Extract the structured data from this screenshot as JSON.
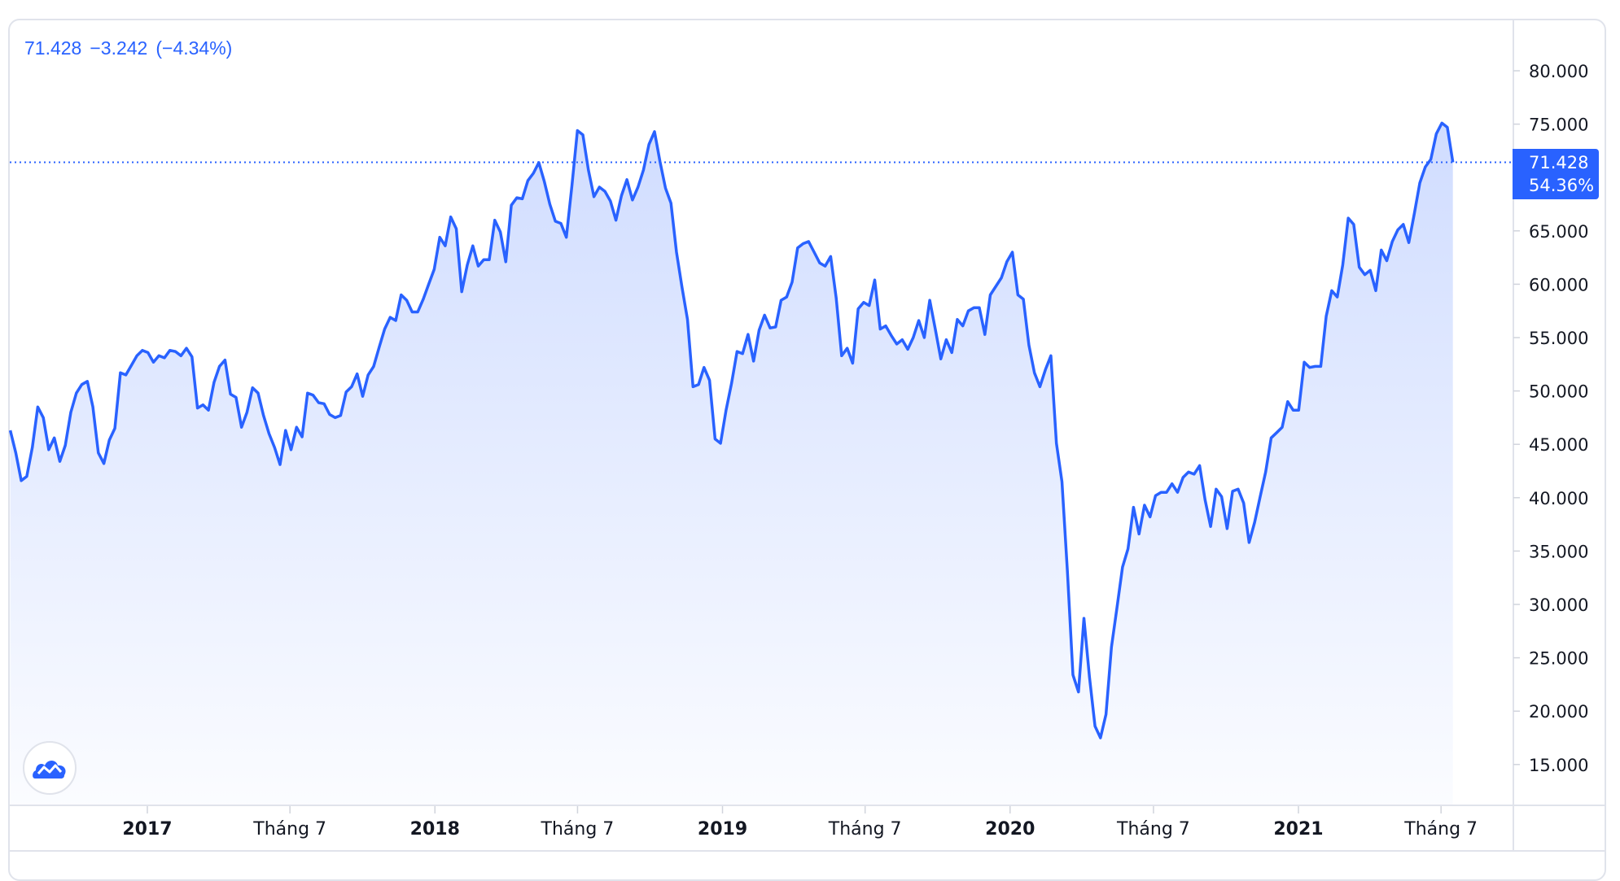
{
  "header": {
    "last": "71.428",
    "change": "−3.242",
    "change_pct": "(−4.34%)"
  },
  "price_badge": {
    "value": "71.428",
    "pct": "54.36%"
  },
  "colors": {
    "line": "#2962ff",
    "fill_top": "rgba(41,98,255,0.22)",
    "fill_bottom": "rgba(41,98,255,0.02)",
    "axis_text": "#131722",
    "grid": "#e0e3eb"
  },
  "logo": {
    "icon": "tradingview-cloud-icon"
  },
  "chart_data": {
    "type": "area",
    "start_date": "2016-07-11",
    "end_date": "2021-07-16",
    "frequency": "weekly",
    "ylim": [
      10000,
      84000
    ],
    "grid": false,
    "last_value": 71428,
    "y_ticks": [
      {
        "value": 80000,
        "label": "80.000"
      },
      {
        "value": 75000,
        "label": "75.000"
      },
      {
        "value": 65000,
        "label": "65.000"
      },
      {
        "value": 60000,
        "label": "60.000"
      },
      {
        "value": 55000,
        "label": "55.000"
      },
      {
        "value": 50000,
        "label": "50.000"
      },
      {
        "value": 45000,
        "label": "45.000"
      },
      {
        "value": 40000,
        "label": "40.000"
      },
      {
        "value": 35000,
        "label": "35.000"
      },
      {
        "value": 30000,
        "label": "30.000"
      },
      {
        "value": 25000,
        "label": "25.000"
      },
      {
        "value": 20000,
        "label": "20.000"
      },
      {
        "value": 15000,
        "label": "15.000"
      }
    ],
    "x_ticks": [
      {
        "date": "2017-01-01",
        "label": "2017",
        "year": true
      },
      {
        "date": "2017-07-01",
        "label": "Tháng 7",
        "year": false
      },
      {
        "date": "2018-01-01",
        "label": "2018",
        "year": true
      },
      {
        "date": "2018-07-01",
        "label": "Tháng 7",
        "year": false
      },
      {
        "date": "2019-01-01",
        "label": "2019",
        "year": true
      },
      {
        "date": "2019-07-01",
        "label": "Tháng 7",
        "year": false
      },
      {
        "date": "2020-01-01",
        "label": "2020",
        "year": true
      },
      {
        "date": "2020-07-01",
        "label": "Tháng 7",
        "year": false
      },
      {
        "date": "2021-01-01",
        "label": "2021",
        "year": true
      },
      {
        "date": "2021-07-01",
        "label": "Tháng 7",
        "year": false
      }
    ],
    "values": [
      46300,
      44200,
      41600,
      42000,
      44700,
      48500,
      47500,
      44500,
      45600,
      43400,
      44900,
      48000,
      49800,
      50600,
      50900,
      48500,
      44200,
      43200,
      45400,
      46500,
      51700,
      51500,
      52400,
      53300,
      53800,
      53600,
      52700,
      53300,
      53100,
      53800,
      53700,
      53300,
      54000,
      53200,
      48400,
      48700,
      48200,
      50800,
      52300,
      52900,
      49700,
      49400,
      46600,
      48000,
      50300,
      49800,
      47700,
      46000,
      44700,
      43100,
      46300,
      44500,
      46600,
      45700,
      49800,
      49600,
      48900,
      48800,
      47800,
      47500,
      47700,
      49900,
      50400,
      51600,
      49500,
      51500,
      52300,
      54100,
      55800,
      56900,
      56600,
      59000,
      58500,
      57400,
      57400,
      58600,
      60000,
      61400,
      64400,
      63600,
      66300,
      65200,
      59300,
      61800,
      63600,
      61700,
      62300,
      62300,
      66000,
      64900,
      62100,
      67400,
      68100,
      68000,
      69700,
      70400,
      71400,
      69600,
      67500,
      65900,
      65700,
      64400,
      69200,
      74400,
      74000,
      70700,
      68200,
      69100,
      68700,
      67800,
      66000,
      68300,
      69800,
      67900,
      69100,
      70700,
      73100,
      74300,
      71500,
      69000,
      67600,
      63000,
      59700,
      56700,
      50400,
      50600,
      52200,
      51000,
      45500,
      45100,
      48200,
      50700,
      53700,
      53500,
      55300,
      52800,
      55700,
      57100,
      55900,
      56000,
      58500,
      58800,
      60200,
      63400,
      63800,
      64000,
      63000,
      62000,
      61700,
      62600,
      58700,
      53300,
      54000,
      52600,
      57700,
      58300,
      58000,
      60400,
      55800,
      56100,
      55200,
      54400,
      54800,
      53900,
      55000,
      56600,
      55000,
      58500,
      55800,
      53000,
      54800,
      53600,
      56700,
      56100,
      57500,
      57800,
      57800,
      55300,
      59000,
      59800,
      60600,
      62100,
      63000,
      59000,
      58600,
      54300,
      51700,
      50400,
      52000,
      53300,
      45100,
      41500,
      33100,
      23400,
      21800,
      28700,
      23200,
      18600,
      17500,
      19700,
      26000,
      29700,
      33500,
      35200,
      39100,
      36600,
      39300,
      38200,
      40200,
      40500,
      40500,
      41300,
      40500,
      41900,
      42400,
      42200,
      43000,
      39800,
      37300,
      40800,
      40100,
      37100,
      40600,
      40800,
      39500,
      35800,
      37700,
      40100,
      42400,
      45600,
      46100,
      46600,
      49000,
      48200,
      48200,
      52700,
      52200,
      52300,
      52300,
      57000,
      59400,
      58800,
      61800,
      66200,
      65600,
      61600,
      60900,
      61300,
      59400,
      63200,
      62200,
      64000,
      65100,
      65600,
      63900,
      66600,
      69500,
      71000,
      71700,
      74100,
      75100,
      74700,
      71428
    ]
  }
}
